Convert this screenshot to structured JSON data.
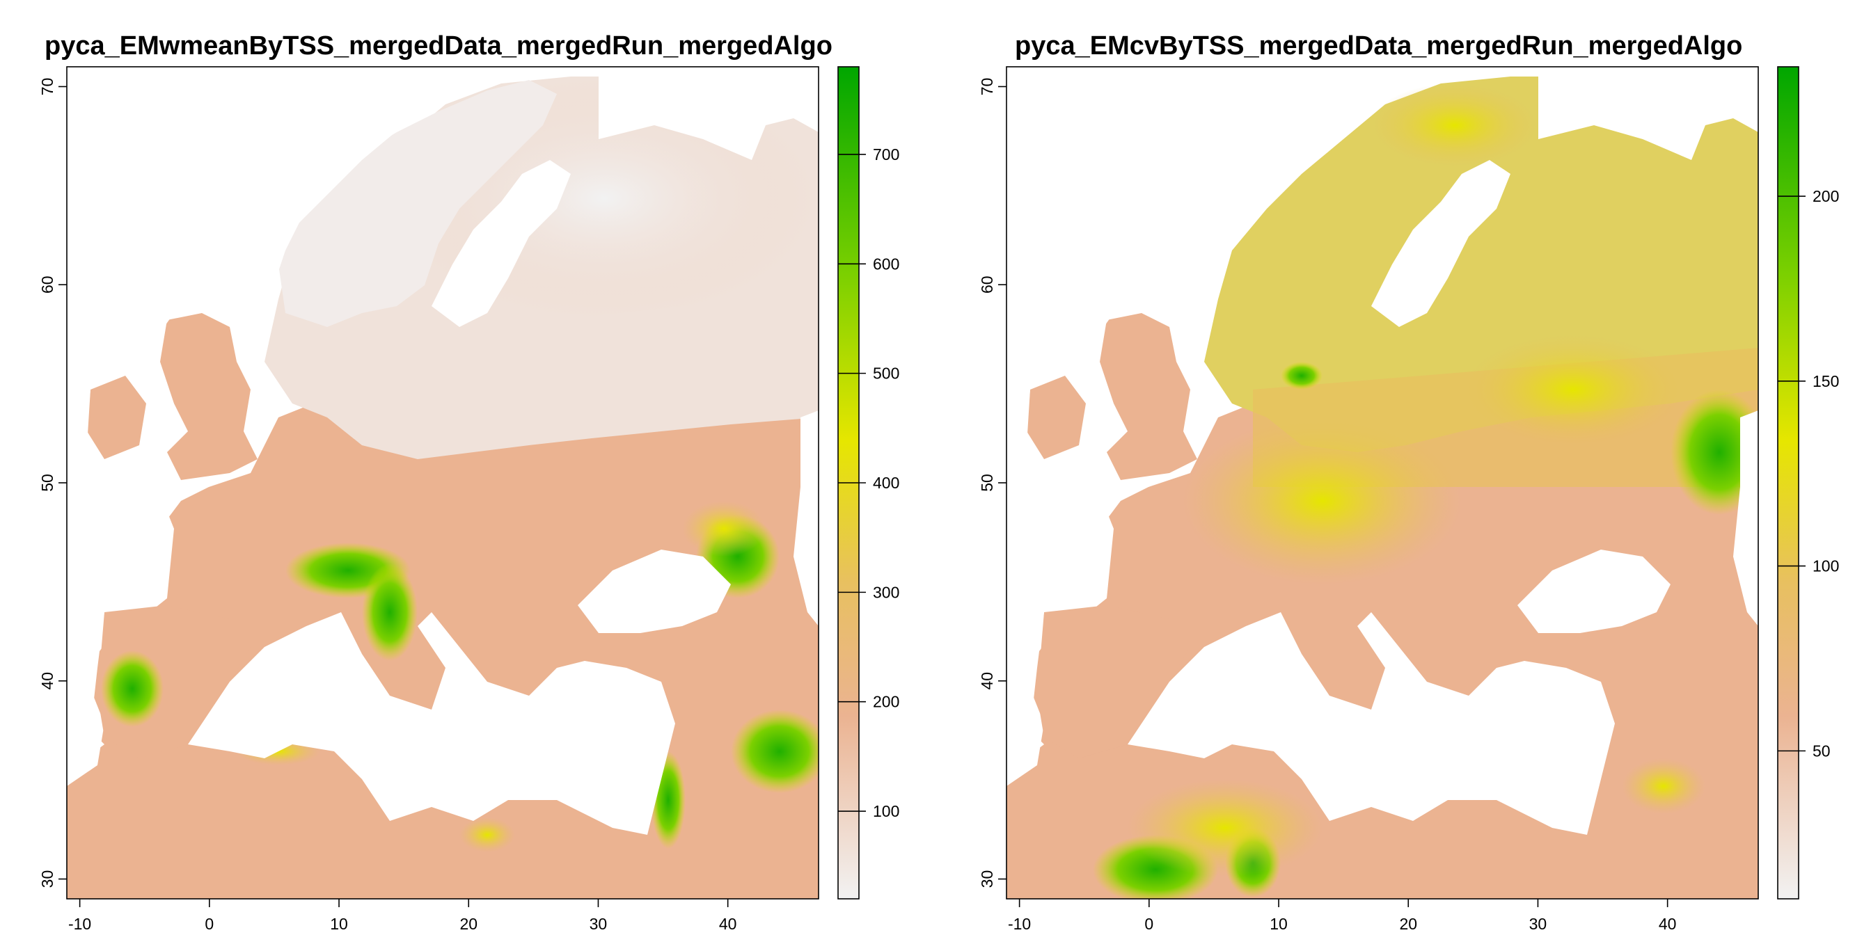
{
  "panels": [
    {
      "title": "pyca_EMwmeanByTSS_mergedData_mergedRun_mergedAlgo",
      "x_ticks": [
        -10,
        0,
        10,
        20,
        30,
        40
      ],
      "y_ticks": [
        30,
        40,
        50,
        60,
        70
      ],
      "xlim": [
        -11,
        47
      ],
      "ylim": [
        29,
        71
      ],
      "legend": {
        "min": 20,
        "max": 780,
        "ticks": [
          100,
          200,
          300,
          400,
          500,
          600,
          700
        ]
      },
      "colors": {
        "low": "#f2f2f2",
        "mid_low": "#ebb391",
        "mid": "#e6e600",
        "high": "#00a600"
      }
    },
    {
      "title": "pyca_EMcvByTSS_mergedData_mergedRun_mergedAlgo",
      "x_ticks": [
        -10,
        0,
        10,
        20,
        30,
        40
      ],
      "y_ticks": [
        30,
        40,
        50,
        60,
        70
      ],
      "xlim": [
        -11,
        47
      ],
      "ylim": [
        29,
        71
      ],
      "legend": {
        "min": 10,
        "max": 235,
        "ticks": [
          50,
          100,
          150,
          200
        ]
      },
      "colors": {
        "low": "#f2f2f2",
        "mid_low": "#ebb391",
        "mid": "#e6e600",
        "high": "#00a600"
      }
    }
  ]
}
